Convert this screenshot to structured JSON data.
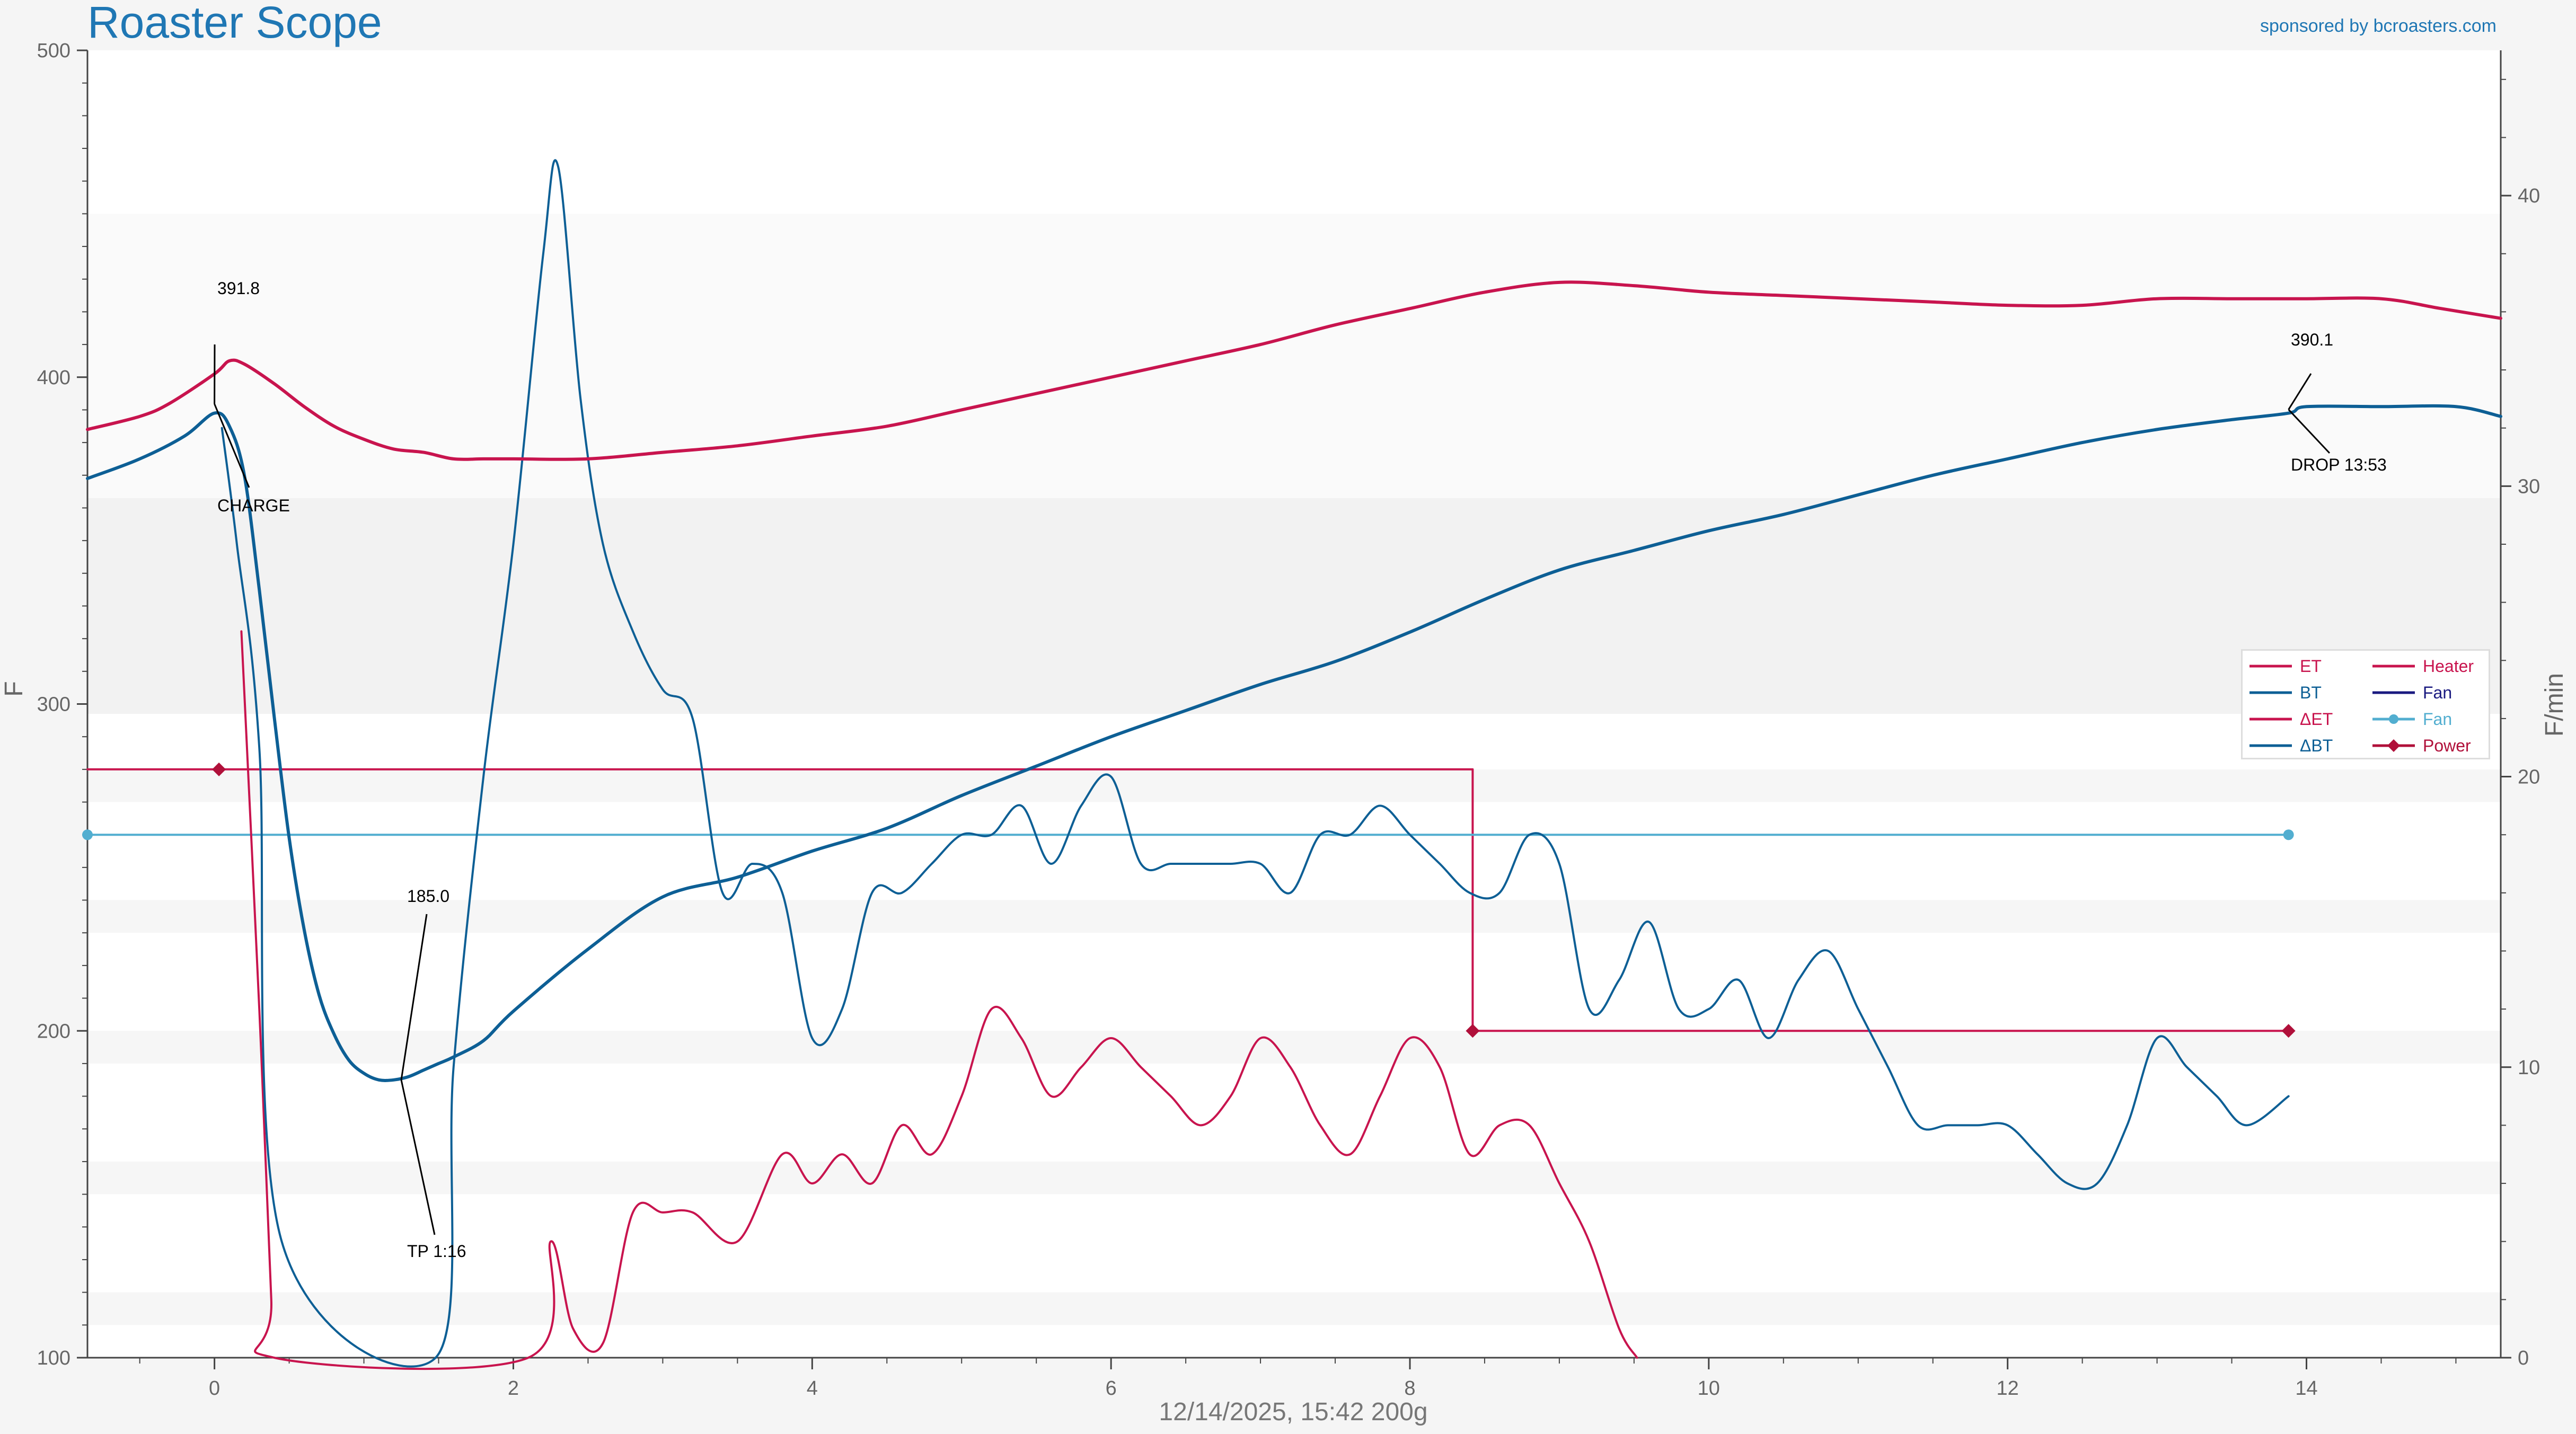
{
  "header": {
    "title": "Roaster Scope",
    "sponsor": "sponsored by bcroasters.com"
  },
  "chart_data": {
    "type": "line",
    "xlabel": "12/14/2025, 15:42   200g",
    "ylabel_left": "F",
    "ylabel_right": "F/min",
    "xlim": [
      -0.85,
      15.3
    ],
    "ylim_left": [
      100,
      500
    ],
    "ylim_right": [
      0,
      45
    ],
    "x_ticks": [
      "0",
      "2",
      "4",
      "6",
      "8",
      "10",
      "12",
      "14"
    ],
    "y_ticks_left": [
      "100",
      "200",
      "300",
      "400",
      "500"
    ],
    "y_ticks_right": [
      "0",
      "10",
      "20",
      "30",
      "40"
    ],
    "grid": false,
    "legend_position": "right-middle",
    "colors": {
      "ET": "#c8144e",
      "BT": "#0d5f95",
      "Delta_ET": "#c8144e",
      "Delta_BT": "#0d5f95",
      "Heater": "#c8144e",
      "Fan_control": "#1a1a80",
      "Fan": "#52aed0",
      "Power": "#b0103a"
    },
    "series": [
      {
        "name": "ET",
        "axis": "left",
        "x": [
          -0.85,
          -0.5,
          -0.3,
          0,
          0.1,
          0.2,
          0.4,
          0.6,
          0.8,
          1.0,
          1.2,
          1.4,
          1.6,
          1.8,
          2.0,
          2.5,
          3.0,
          3.5,
          4.0,
          4.5,
          5.0,
          5.5,
          6.0,
          6.5,
          7.0,
          7.5,
          8.0,
          8.5,
          9.0,
          9.5,
          10.0,
          10.5,
          11.0,
          11.5,
          12.0,
          12.5,
          13.0,
          13.5,
          14.0,
          14.5,
          14.9,
          15.3
        ],
        "values": [
          384,
          388,
          392,
          401,
          405,
          404,
          398,
          391,
          385,
          381,
          378,
          377,
          375,
          375,
          375,
          375,
          377,
          379,
          382,
          385,
          390,
          395,
          400,
          405,
          410,
          416,
          421,
          426,
          429,
          428,
          426,
          425,
          424,
          423,
          422,
          422,
          424,
          424,
          424,
          424,
          421,
          418
        ]
      },
      {
        "name": "BT",
        "axis": "left",
        "x": [
          -0.85,
          -0.5,
          -0.2,
          0.0,
          0.1,
          0.2,
          0.3,
          0.4,
          0.5,
          0.6,
          0.7,
          0.8,
          0.9,
          1.0,
          1.1,
          1.2,
          1.3,
          1.4,
          1.5,
          1.6,
          1.8,
          2.0,
          2.5,
          3.0,
          3.5,
          4.0,
          4.5,
          5.0,
          5.5,
          6.0,
          6.5,
          7.0,
          7.5,
          8.0,
          8.5,
          9.0,
          9.5,
          10.0,
          10.5,
          11.0,
          11.5,
          12.0,
          12.5,
          13.0,
          13.5,
          13.88,
          14.0,
          14.5,
          15.0,
          15.3
        ],
        "values": [
          369,
          375,
          382,
          389,
          385,
          370,
          335,
          296,
          259,
          231,
          211,
          199,
          191,
          187,
          185,
          185,
          186,
          188,
          190,
          192,
          197,
          206,
          225,
          241,
          247,
          255,
          262,
          272,
          281,
          290,
          298,
          306,
          313,
          322,
          332,
          341,
          347,
          353,
          358,
          364,
          370,
          375,
          380,
          384,
          387,
          389,
          391,
          391,
          391,
          388
        ]
      },
      {
        "name": "ΔET",
        "axis": "right",
        "x": [
          0.18,
          0.3,
          0.38,
          0.4,
          2.1,
          2.25,
          2.4,
          2.6,
          2.8,
          3.0,
          3.2,
          3.5,
          3.8,
          4.0,
          4.2,
          4.4,
          4.6,
          4.8,
          5.0,
          5.2,
          5.4,
          5.6,
          5.8,
          6.0,
          6.2,
          6.4,
          6.6,
          6.8,
          7.0,
          7.2,
          7.4,
          7.6,
          7.8,
          8.0,
          8.2,
          8.4,
          8.6,
          8.8,
          9.0,
          9.2,
          9.4,
          9.52
        ],
        "values": [
          25,
          12,
          2,
          0,
          0,
          4,
          1,
          0.5,
          5,
          5,
          5,
          4,
          7,
          6,
          7,
          6,
          8,
          7,
          9,
          12,
          11,
          9,
          10,
          11,
          10,
          9,
          8,
          9,
          11,
          10,
          8,
          7,
          9,
          11,
          10,
          7,
          8,
          8,
          6,
          4,
          1,
          0
        ]
      },
      {
        "name": "ΔBT",
        "axis": "right",
        "x": [
          0.05,
          0.15,
          0.3,
          0.45,
          1.48,
          1.6,
          1.8,
          2.0,
          2.2,
          2.3,
          2.45,
          2.6,
          2.8,
          3.0,
          3.2,
          3.4,
          3.6,
          3.8,
          4.0,
          4.2,
          4.4,
          4.6,
          4.8,
          5.0,
          5.2,
          5.4,
          5.6,
          5.8,
          6.0,
          6.2,
          6.4,
          6.6,
          6.8,
          7.0,
          7.2,
          7.4,
          7.6,
          7.8,
          8.0,
          8.2,
          8.4,
          8.6,
          8.8,
          9.0,
          9.2,
          9.4,
          9.6,
          9.8,
          10.0,
          10.2,
          10.4,
          10.6,
          10.8,
          11.0,
          11.2,
          11.4,
          11.6,
          11.8,
          12.0,
          12.2,
          12.4,
          12.6,
          12.8,
          13.0,
          13.2,
          13.4,
          13.6,
          13.88
        ],
        "values": [
          32,
          28,
          21,
          4,
          0,
          10,
          20,
          28,
          38,
          41,
          33,
          28,
          25,
          23,
          22,
          16,
          17,
          16,
          11,
          12,
          16,
          16,
          17,
          18,
          18,
          19,
          17,
          19,
          20,
          17,
          17,
          17,
          17,
          17,
          16,
          18,
          18,
          19,
          18,
          17,
          16,
          16,
          18,
          17,
          12,
          13,
          15,
          12,
          12,
          13,
          11,
          13,
          14,
          12,
          10,
          8,
          8,
          8,
          8,
          7,
          6,
          6,
          8,
          11,
          10,
          9,
          8,
          9
        ]
      },
      {
        "name": "Heater",
        "axis": "left",
        "x": [
          -0.85,
          8.42,
          8.42,
          13.88
        ],
        "values": [
          280,
          280,
          200,
          200
        ]
      },
      {
        "name": "Fan",
        "axis": "left",
        "x": [
          -0.85,
          13.88
        ],
        "values": [
          260,
          260
        ]
      },
      {
        "name": "Power",
        "axis": "left",
        "x": [
          0.03,
          8.42,
          13.88
        ],
        "values": [
          280,
          200,
          200
        ]
      }
    ],
    "annotations": [
      {
        "x": 0,
        "y": 391.8,
        "label": "391.8"
      },
      {
        "x": 0,
        "y": 389,
        "label": "CHARGE"
      },
      {
        "x": 1.25,
        "y": 185.0,
        "label": "185.0"
      },
      {
        "x": 1.25,
        "y": 185,
        "label": "TP 1:16"
      },
      {
        "x": 13.88,
        "y": 390.1,
        "label": "390.1"
      },
      {
        "x": 13.88,
        "y": 389,
        "label": "DROP 13:53"
      }
    ]
  },
  "legend": {
    "items": [
      {
        "label": "ET",
        "color": "#c8144e",
        "marker": "none"
      },
      {
        "label": "BT",
        "color": "#0d5f95",
        "marker": "none"
      },
      {
        "label": "ΔET",
        "color": "#c8144e",
        "marker": "none"
      },
      {
        "label": "ΔBT",
        "color": "#0d5f95",
        "marker": "none"
      },
      {
        "label": "Heater",
        "color": "#c8144e",
        "marker": "none"
      },
      {
        "label": "Fan",
        "color": "#1a1a80",
        "marker": "none"
      },
      {
        "label": "Fan",
        "color": "#52aed0",
        "marker": "circle"
      },
      {
        "label": "Power",
        "color": "#b0103a",
        "marker": "diamond"
      }
    ]
  }
}
